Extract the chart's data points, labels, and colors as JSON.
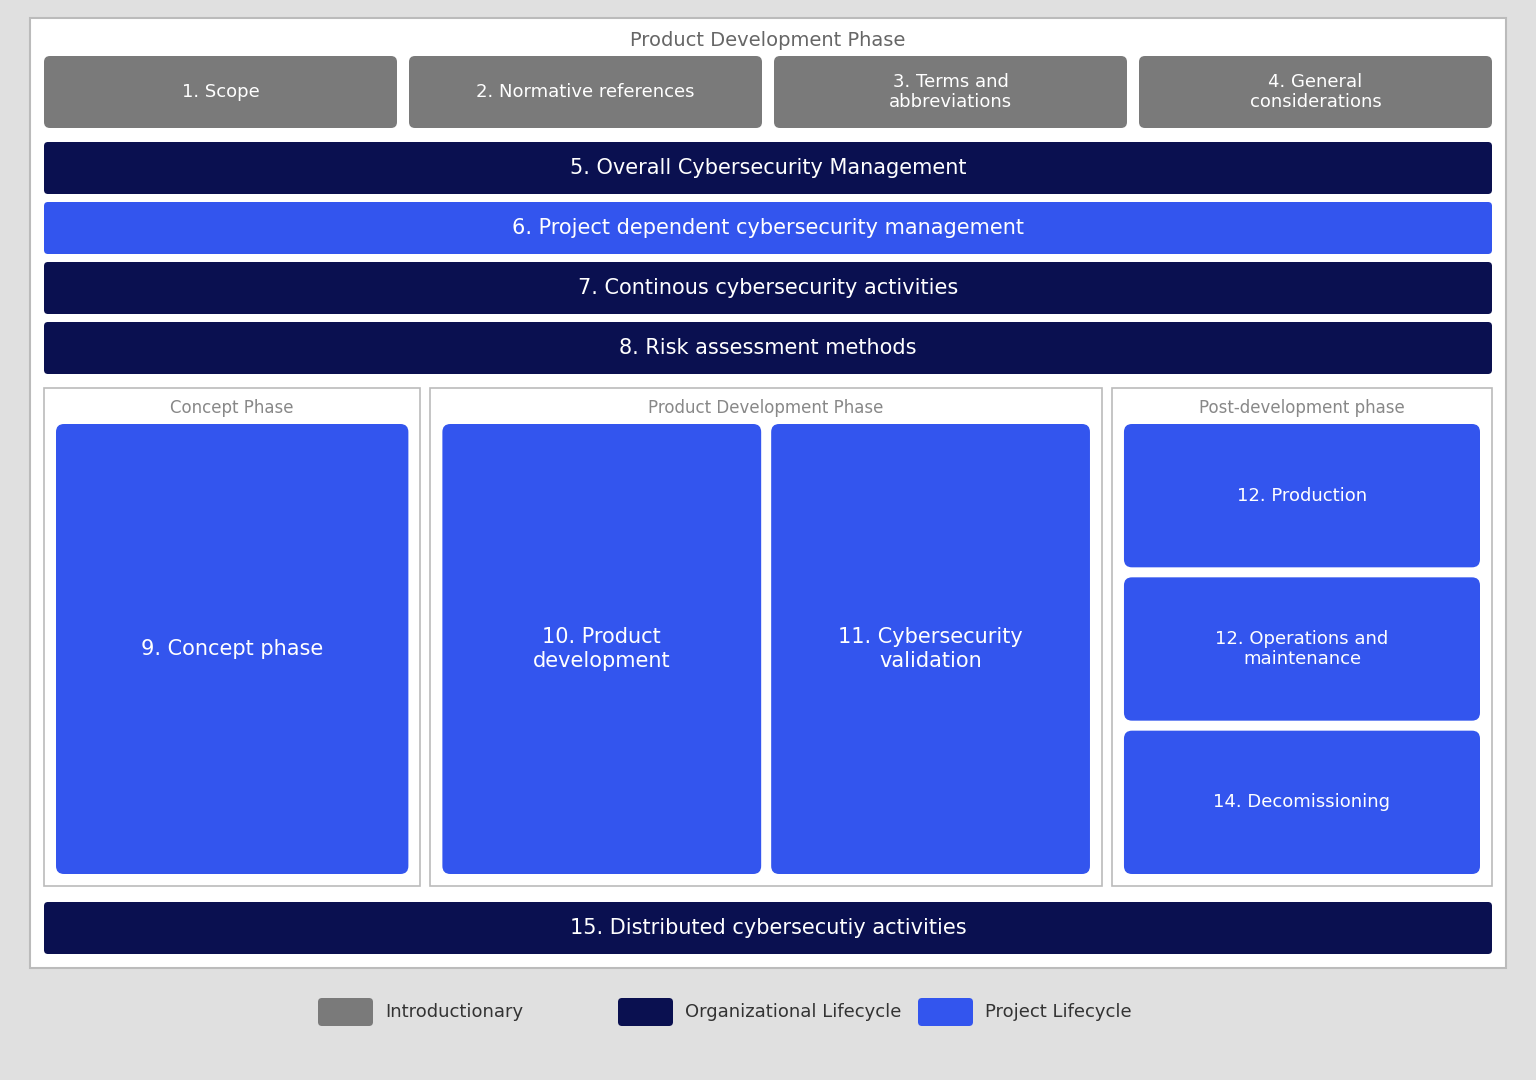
{
  "background_color": "#e0e0e0",
  "white_bg": "#ffffff",
  "title_top": "Product Development Phase",
  "org_color": "#0a1050",
  "proj_color": "#3355ee",
  "gray_box_color": "#7a7a7a",
  "rows": [
    {
      "label": "1. Scope"
    },
    {
      "label": "2. Normative references"
    },
    {
      "label": "3. Terms and\nabbreviations"
    },
    {
      "label": "4. General\nconsiderations"
    }
  ],
  "wide_bars": [
    {
      "label": "5. Overall Cybersecurity Management",
      "type": "org"
    },
    {
      "label": "6. Project dependent cybersecurity management",
      "type": "proj"
    },
    {
      "label": "7. Continous cybersecurity activities",
      "type": "org"
    },
    {
      "label": "8. Risk assessment methods",
      "type": "org"
    }
  ],
  "concept_title": "Concept Phase",
  "concept_box": "9. Concept phase",
  "product_dev_title": "Product Development Phase",
  "product_boxes": [
    "10. Product\ndevelopment",
    "11. Cybersecurity\nvalidation"
  ],
  "post_dev_title": "Post-development phase",
  "post_boxes": [
    "12. Production",
    "12. Operations and\nmaintenance",
    "14. Decomissioning"
  ],
  "bottom_bar": "15. Distributed cybersecutiy activities",
  "legend": [
    {
      "label": "Introductionary",
      "color": "#7a7a7a"
    },
    {
      "label": "Organizational Lifecycle",
      "color": "#0a1050"
    },
    {
      "label": "Project Lifecycle",
      "color": "#3355ee"
    }
  ],
  "fig_w": 15.36,
  "fig_h": 10.8,
  "dpi": 100
}
